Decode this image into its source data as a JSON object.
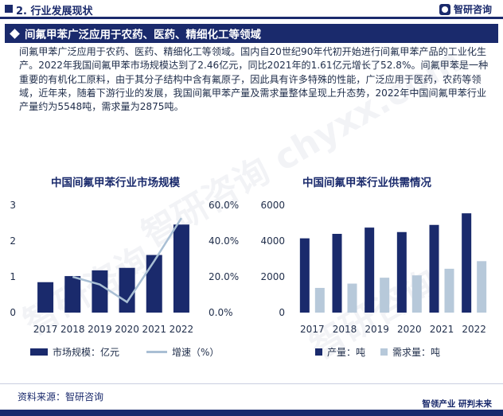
{
  "header": {
    "section_title": "2. 行业发展现状",
    "logo_text": "智研咨询"
  },
  "banner": {
    "title": "间氟甲苯广泛应用于农药、医药、精细化工等领域"
  },
  "paragraph": "间氟甲苯广泛应用于农药、医药、精细化工等领域。国内自20世纪90年代初开始进行间氟甲苯产品的工业化生产。2022年我国间氟甲苯市场规模达到了2.46亿元，同比2021年的1.61亿元增长了52.8%。间氟甲苯是一种重要的有机化工原料，由于其分子结构中含有氟原子，因此具有许多特殊的性能，广泛应用于医药，农药等领域，近年来，随着下游行业的发展，我国间氟甲苯产量及需求量整体呈现上升态势，2022年中国间氟甲苯行业产量约为5548吨，需求量为2875吨。",
  "chart_data": [
    {
      "type": "bar",
      "title": "中国间氟甲苯行业市场规模",
      "categories": [
        "2017",
        "2018",
        "2019",
        "2020",
        "2021",
        "2022"
      ],
      "series": [
        {
          "name": "市场规模：亿元",
          "type": "bar",
          "axis": "left",
          "color": "#1a2a6c",
          "values": [
            0.85,
            1.02,
            1.18,
            1.25,
            1.61,
            2.46
          ]
        },
        {
          "name": "增速（%）",
          "type": "line",
          "axis": "right",
          "color": "#a9bfd4",
          "values": [
            null,
            20.0,
            15.7,
            5.9,
            28.8,
            52.8
          ]
        }
      ],
      "y_left": {
        "ticks": [
          "0",
          "1",
          "2",
          "3"
        ],
        "range": [
          0,
          3
        ]
      },
      "y_right": {
        "ticks": [
          "0.0%",
          "20.0%",
          "40.0%",
          "60.0%"
        ],
        "range": [
          0,
          60
        ]
      },
      "legend": "bottom"
    },
    {
      "type": "bar",
      "title": "中国间氟甲苯行业供需情况",
      "categories": [
        "2017",
        "2018",
        "2019",
        "2020",
        "2021",
        "2022"
      ],
      "series": [
        {
          "name": "产量：吨",
          "color": "#1a2a6c",
          "values": [
            4150,
            4400,
            4750,
            4500,
            4900,
            5548
          ]
        },
        {
          "name": "需求量：吨",
          "color": "#b7c9da",
          "values": [
            1380,
            1620,
            1950,
            2080,
            2450,
            2875
          ]
        }
      ],
      "y_left": {
        "ticks": [
          "0",
          "2000",
          "4000",
          "6000"
        ],
        "range": [
          0,
          6000
        ]
      },
      "legend": "bottom"
    }
  ],
  "footer": {
    "source": "资料来源：智研咨询",
    "slogan": "智领产业  研判未来"
  }
}
